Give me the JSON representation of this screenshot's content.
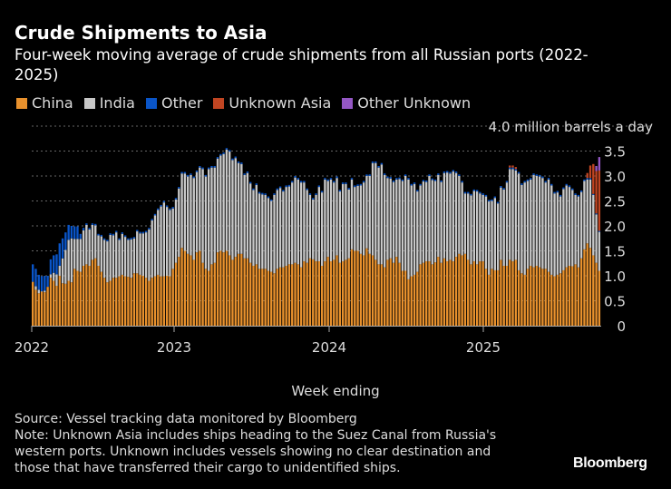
{
  "chart_data": {
    "type": "bar",
    "stacked": true,
    "title": "Crude Shipments to Asia",
    "subtitle": "Four-week moving average of crude shipments from all Russian ports (2022-2025)",
    "xlabel": "Week ending",
    "ylabel": "",
    "y_unit_label": "4.0 million barrels a day",
    "ylim": [
      0,
      4.0
    ],
    "y_ticks": [
      "0",
      "0.5",
      "1.0",
      "1.5",
      "2.0",
      "2.5",
      "3.0",
      "3.5"
    ],
    "x_ticks": [
      "2022",
      "2023",
      "2024",
      "2025"
    ],
    "grid": true,
    "legend_position": "top-left",
    "series": [
      {
        "name": "China",
        "color": "#e8912d",
        "values": [
          0.88,
          0.72,
          0.65,
          0.68,
          0.67,
          0.78,
          0.96,
          0.9,
          0.8,
          1.0,
          0.85,
          0.84,
          0.9,
          0.87,
          1.14,
          1.1,
          1.08,
          1.2,
          1.23,
          1.2,
          1.32,
          1.35,
          1.2,
          1.08,
          0.96,
          0.87,
          0.9,
          0.96,
          0.96,
          0.99,
          1.02,
          0.99,
          0.98,
          0.96,
          1.05,
          1.05,
          1.02,
          1.0,
          0.96,
          0.9,
          0.96,
          0.99,
          1.02,
          0.99,
          0.99,
          1.0,
          0.99,
          1.14,
          1.26,
          1.38,
          1.56,
          1.5,
          1.44,
          1.41,
          1.32,
          1.47,
          1.5,
          1.26,
          1.14,
          1.1,
          1.23,
          1.26,
          1.47,
          1.5,
          1.47,
          1.5,
          1.41,
          1.32,
          1.38,
          1.44,
          1.44,
          1.35,
          1.35,
          1.26,
          1.2,
          1.23,
          1.14,
          1.14,
          1.14,
          1.1,
          1.08,
          1.05,
          1.14,
          1.17,
          1.17,
          1.2,
          1.23,
          1.23,
          1.26,
          1.23,
          1.17,
          1.29,
          1.26,
          1.35,
          1.33,
          1.29,
          1.29,
          1.2,
          1.29,
          1.38,
          1.29,
          1.32,
          1.41,
          1.26,
          1.29,
          1.32,
          1.35,
          1.53,
          1.5,
          1.5,
          1.44,
          1.41,
          1.55,
          1.44,
          1.41,
          1.32,
          1.23,
          1.23,
          1.17,
          1.32,
          1.35,
          1.26,
          1.38,
          1.26,
          1.1,
          1.1,
          0.93,
          0.99,
          1.02,
          1.08,
          1.23,
          1.26,
          1.29,
          1.29,
          1.23,
          1.27,
          1.38,
          1.26,
          1.35,
          1.29,
          1.32,
          1.29,
          1.38,
          1.44,
          1.41,
          1.44,
          1.32,
          1.23,
          1.29,
          1.23,
          1.29,
          1.29,
          1.14,
          1.02,
          1.14,
          1.11,
          1.11,
          1.32,
          1.2,
          1.2,
          1.32,
          1.29,
          1.32,
          1.11,
          1.05,
          1.02,
          1.14,
          1.2,
          1.17,
          1.2,
          1.17,
          1.14,
          1.14,
          1.08,
          1.02,
          0.99,
          1.02,
          1.05,
          1.11,
          1.17,
          1.2,
          1.19,
          1.23,
          1.17,
          1.35,
          1.53,
          1.65,
          1.56,
          1.41,
          1.26,
          1.1
        ]
      },
      {
        "name": "India",
        "color": "#c8c8c8",
        "values": [
          0.0,
          0.07,
          0.07,
          0.01,
          0.03,
          0.0,
          0.07,
          0.16,
          0.23,
          0.2,
          0.5,
          0.68,
          0.82,
          0.88,
          0.6,
          0.64,
          0.66,
          0.71,
          0.79,
          0.73,
          0.7,
          0.66,
          0.61,
          0.71,
          0.76,
          0.82,
          0.92,
          0.85,
          0.91,
          0.73,
          0.82,
          0.79,
          0.74,
          0.77,
          0.7,
          0.84,
          0.83,
          0.85,
          0.91,
          1.03,
          1.15,
          1.22,
          1.3,
          1.4,
          1.48,
          1.38,
          1.33,
          1.21,
          1.27,
          1.37,
          1.49,
          1.55,
          1.55,
          1.61,
          1.64,
          1.61,
          1.67,
          1.88,
          1.85,
          2.04,
          1.94,
          1.91,
          1.88,
          1.91,
          1.97,
          2.03,
          2.08,
          2.0,
          1.98,
          1.82,
          1.8,
          1.67,
          1.71,
          1.59,
          1.52,
          1.59,
          1.51,
          1.49,
          1.48,
          1.46,
          1.42,
          1.57,
          1.58,
          1.59,
          1.52,
          1.58,
          1.56,
          1.64,
          1.71,
          1.7,
          1.7,
          1.58,
          1.46,
          1.27,
          1.2,
          1.33,
          1.49,
          1.47,
          1.64,
          1.52,
          1.64,
          1.55,
          1.55,
          1.43,
          1.55,
          1.52,
          1.38,
          1.4,
          1.28,
          1.3,
          1.37,
          1.46,
          1.45,
          1.56,
          1.85,
          1.94,
          1.94,
          2.0,
          1.85,
          1.64,
          1.6,
          1.62,
          1.55,
          1.68,
          1.8,
          1.9,
          2.0,
          1.82,
          1.82,
          1.61,
          1.58,
          1.63,
          1.59,
          1.71,
          1.69,
          1.63,
          1.64,
          1.62,
          1.71,
          1.78,
          1.73,
          1.8,
          1.68,
          1.56,
          1.46,
          1.21,
          1.33,
          1.38,
          1.41,
          1.46,
          1.36,
          1.33,
          1.45,
          1.47,
          1.36,
          1.45,
          1.34,
          1.45,
          1.53,
          1.67,
          1.82,
          1.85,
          1.79,
          1.94,
          1.77,
          1.85,
          1.76,
          1.73,
          1.85,
          1.8,
          1.82,
          1.82,
          1.73,
          1.85,
          1.79,
          1.66,
          1.65,
          1.54,
          1.63,
          1.64,
          1.58,
          1.53,
          1.39,
          1.42,
          1.33,
          1.37,
          1.28,
          1.37,
          1.21,
          0.97,
          0.78
        ]
      },
      {
        "name": "Other",
        "color": "#0a55c8",
        "values": [
          0.35,
          0.35,
          0.3,
          0.3,
          0.3,
          0.22,
          0.3,
          0.35,
          0.4,
          0.45,
          0.4,
          0.35,
          0.3,
          0.25,
          0.25,
          0.25,
          0.1,
          0.05,
          0.03,
          0.03,
          0.03,
          0.03,
          0.03,
          0.03,
          0.03,
          0.03,
          0.03,
          0.03,
          0.03,
          0.03,
          0.03,
          0.03,
          0.03,
          0.03,
          0.03,
          0.03,
          0.03,
          0.03,
          0.03,
          0.03,
          0.03,
          0.03,
          0.03,
          0.03,
          0.03,
          0.03,
          0.03,
          0.03,
          0.03,
          0.03,
          0.03,
          0.03,
          0.03,
          0.03,
          0.03,
          0.03,
          0.03,
          0.03,
          0.03,
          0.03,
          0.03,
          0.03,
          0.03,
          0.03,
          0.03,
          0.03,
          0.03,
          0.03,
          0.03,
          0.03,
          0.03,
          0.03,
          0.03,
          0.03,
          0.03,
          0.03,
          0.03,
          0.03,
          0.03,
          0.03,
          0.03,
          0.03,
          0.03,
          0.03,
          0.03,
          0.03,
          0.03,
          0.03,
          0.03,
          0.03,
          0.03,
          0.03,
          0.03,
          0.03,
          0.03,
          0.03,
          0.03,
          0.03,
          0.03,
          0.03,
          0.03,
          0.03,
          0.03,
          0.03,
          0.03,
          0.03,
          0.03,
          0.03,
          0.03,
          0.03,
          0.03,
          0.03,
          0.03,
          0.03,
          0.03,
          0.03,
          0.03,
          0.03,
          0.03,
          0.03,
          0.03,
          0.03,
          0.03,
          0.03,
          0.03,
          0.03,
          0.03,
          0.03,
          0.03,
          0.03,
          0.03,
          0.03,
          0.03,
          0.03,
          0.03,
          0.03,
          0.03,
          0.03,
          0.03,
          0.03,
          0.03,
          0.03,
          0.03,
          0.03,
          0.03,
          0.03,
          0.03,
          0.03,
          0.03,
          0.03,
          0.03,
          0.03,
          0.03,
          0.03,
          0.03,
          0.03,
          0.03,
          0.03,
          0.03,
          0.03,
          0.03,
          0.03,
          0.03,
          0.03,
          0.03,
          0.03,
          0.03,
          0.03,
          0.03,
          0.03,
          0.03,
          0.03,
          0.03,
          0.03,
          0.03,
          0.03,
          0.03,
          0.03,
          0.03,
          0.03,
          0.03,
          0.03,
          0.03,
          0.03,
          0.03,
          0.03,
          0.03,
          0.03,
          0.02,
          0.02,
          0.02
        ]
      },
      {
        "name": "Unknown Asia",
        "color": "#c04522",
        "values": [
          0,
          0,
          0,
          0,
          0,
          0,
          0,
          0,
          0,
          0,
          0,
          0,
          0,
          0,
          0,
          0,
          0,
          0,
          0,
          0,
          0,
          0,
          0,
          0,
          0,
          0,
          0,
          0,
          0,
          0,
          0,
          0,
          0,
          0,
          0,
          0,
          0,
          0,
          0,
          0,
          0,
          0,
          0,
          0,
          0,
          0,
          0,
          0,
          0,
          0,
          0,
          0,
          0,
          0,
          0,
          0,
          0,
          0,
          0,
          0,
          0,
          0,
          0,
          0,
          0,
          0,
          0,
          0,
          0,
          0,
          0,
          0,
          0,
          0,
          0,
          0,
          0,
          0,
          0,
          0,
          0,
          0,
          0,
          0,
          0,
          0,
          0,
          0,
          0,
          0,
          0,
          0,
          0,
          0,
          0,
          0,
          0,
          0,
          0,
          0,
          0,
          0,
          0,
          0,
          0,
          0,
          0,
          0,
          0,
          0,
          0,
          0,
          0,
          0,
          0,
          0,
          0,
          0,
          0,
          0,
          0,
          0,
          0,
          0,
          0,
          0,
          0,
          0,
          0,
          0,
          0,
          0,
          0,
          0,
          0,
          0,
          0,
          0,
          0,
          0,
          0,
          0,
          0,
          0,
          0,
          0,
          0,
          0,
          0,
          0,
          0,
          0,
          0,
          0,
          0,
          0,
          0,
          0,
          0,
          0,
          0.04,
          0.04,
          0.04,
          0,
          0,
          0,
          0,
          0,
          0,
          0,
          0,
          0,
          0,
          0,
          0,
          0,
          0,
          0,
          0,
          0,
          0,
          0,
          0,
          0,
          0,
          0,
          0.1,
          0.25,
          0.6,
          0.85,
          1.21
        ]
      },
      {
        "name": "Other Unknown",
        "color": "#9457c4",
        "values": [
          0,
          0,
          0,
          0,
          0,
          0,
          0,
          0,
          0,
          0,
          0,
          0,
          0,
          0,
          0,
          0,
          0,
          0,
          0,
          0,
          0,
          0,
          0,
          0,
          0,
          0,
          0,
          0,
          0,
          0,
          0,
          0,
          0,
          0,
          0,
          0,
          0,
          0,
          0,
          0,
          0,
          0,
          0,
          0,
          0,
          0,
          0,
          0,
          0,
          0,
          0,
          0,
          0,
          0,
          0,
          0,
          0,
          0,
          0,
          0,
          0,
          0,
          0,
          0,
          0,
          0,
          0,
          0,
          0,
          0,
          0,
          0,
          0,
          0,
          0,
          0,
          0,
          0,
          0,
          0,
          0,
          0,
          0,
          0,
          0,
          0,
          0,
          0,
          0,
          0,
          0,
          0,
          0,
          0,
          0,
          0,
          0,
          0,
          0,
          0,
          0,
          0,
          0,
          0,
          0,
          0,
          0,
          0,
          0,
          0,
          0,
          0,
          0,
          0,
          0,
          0,
          0,
          0,
          0,
          0,
          0,
          0,
          0,
          0,
          0,
          0,
          0,
          0,
          0,
          0,
          0,
          0,
          0,
          0,
          0,
          0,
          0,
          0,
          0,
          0,
          0,
          0,
          0,
          0,
          0,
          0,
          0,
          0,
          0,
          0,
          0,
          0,
          0,
          0,
          0,
          0,
          0,
          0,
          0,
          0,
          0,
          0,
          0,
          0,
          0,
          0,
          0,
          0,
          0,
          0,
          0,
          0,
          0,
          0,
          0,
          0,
          0,
          0,
          0,
          0,
          0,
          0,
          0,
          0,
          0,
          0,
          0,
          0,
          0,
          0.1,
          0.27
        ]
      }
    ]
  },
  "notes": [
    "Source: Vessel tracking data monitored by Bloomberg",
    "Note: Unknown Asia includes ships heading to the Suez Canal from Russia's",
    "western ports. Unknown includes vessels showing no clear destination and",
    "those that have transferred their cargo to unidentified ships."
  ],
  "brand": "Bloomberg"
}
